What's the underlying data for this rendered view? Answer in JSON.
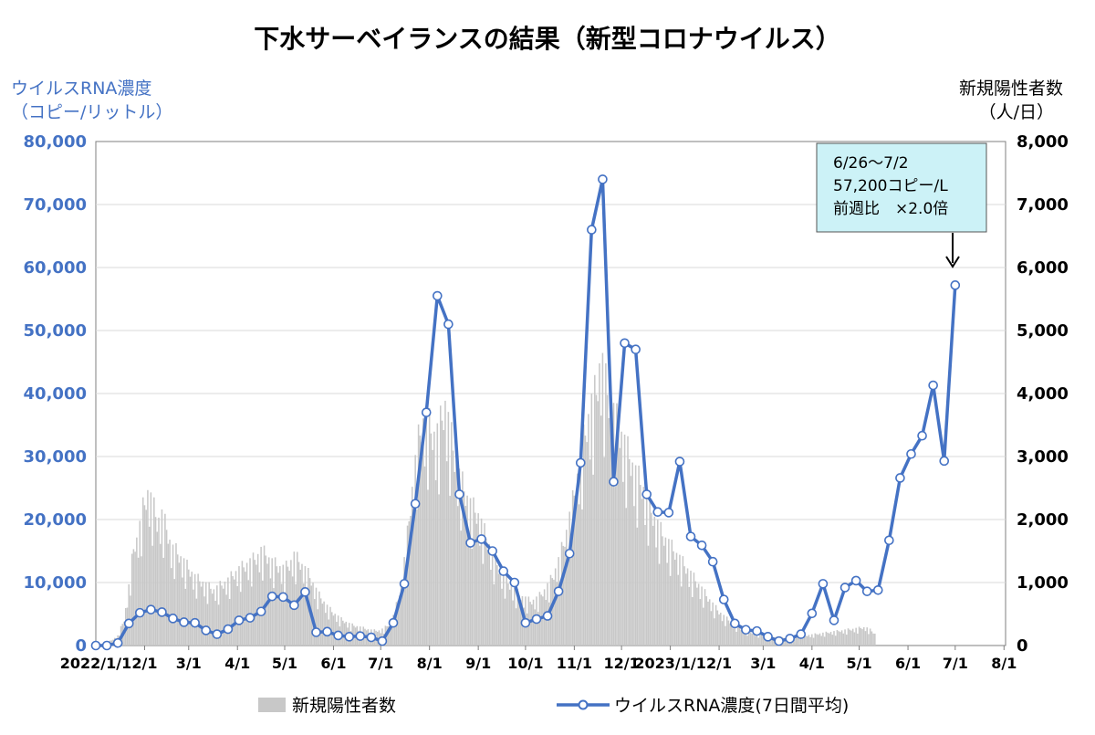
{
  "chart_data": {
    "type": "bar+line",
    "title": "下水サーベイランスの結果（新型コロナウイルス）",
    "left_axis": {
      "label_line1": "ウイルスRNA濃度",
      "label_line2": "（コピー/リットル）",
      "ylim": [
        0,
        80000
      ],
      "ticks": [
        "0",
        "10,000",
        "20,000",
        "30,000",
        "40,000",
        "50,000",
        "60,000",
        "70,000",
        "80,000"
      ],
      "tick_values": [
        0,
        10000,
        20000,
        30000,
        40000,
        50000,
        60000,
        70000,
        80000
      ]
    },
    "right_axis": {
      "label_line1": "新規陽性者数",
      "label_line2": "（人/日）",
      "ylim": [
        0,
        8000
      ],
      "ticks": [
        "0",
        "1,000",
        "2,000",
        "3,000",
        "4,000",
        "5,000",
        "6,000",
        "7,000",
        "8,000"
      ],
      "tick_values": [
        0,
        1000,
        2000,
        3000,
        4000,
        5000,
        6000,
        7000,
        8000
      ]
    },
    "x_axis": {
      "range_days": [
        0,
        578
      ],
      "tick_labels": [
        "2022/1/1",
        "2/1",
        "3/1",
        "4/1",
        "5/1",
        "6/1",
        "7/1",
        "8/1",
        "9/1",
        "10/1",
        "11/1",
        "12/1",
        "2023/1/1",
        "2/1",
        "3/1",
        "4/1",
        "5/1",
        "6/1",
        "7/1",
        "8/1"
      ],
      "tick_days": [
        0,
        31,
        59,
        90,
        120,
        151,
        181,
        212,
        243,
        273,
        304,
        334,
        365,
        396,
        424,
        455,
        485,
        516,
        546,
        577
      ]
    },
    "legend": {
      "bars_label": "新規陽性者数",
      "line_label": "ウイルスRNA濃度(7日間平均)",
      "placement": "bottom"
    },
    "annotation": {
      "line1": "6/26〜7/2",
      "line2": "57,200コピー/L",
      "line3": "前週比　×2.0倍"
    },
    "colors": {
      "line": "#4472c4",
      "bars": "#c8c8c8",
      "marker_fill": "#ffffff",
      "annotation_bg": "#ccf2f7"
    },
    "series": [
      {
        "name": "ウイルスRNA濃度(7日間平均)",
        "axis": "left",
        "points": [
          [
            0,
            0
          ],
          [
            7,
            0
          ],
          [
            14,
            400
          ],
          [
            21,
            3500
          ],
          [
            28,
            5200
          ],
          [
            35,
            5700
          ],
          [
            42,
            5300
          ],
          [
            49,
            4300
          ],
          [
            56,
            3700
          ],
          [
            63,
            3600
          ],
          [
            70,
            2400
          ],
          [
            77,
            1800
          ],
          [
            84,
            2600
          ],
          [
            91,
            4000
          ],
          [
            98,
            4400
          ],
          [
            105,
            5400
          ],
          [
            112,
            7800
          ],
          [
            119,
            7700
          ],
          [
            126,
            6400
          ],
          [
            133,
            8500
          ],
          [
            140,
            2100
          ],
          [
            147,
            2200
          ],
          [
            154,
            1600
          ],
          [
            161,
            1400
          ],
          [
            168,
            1500
          ],
          [
            175,
            1300
          ],
          [
            182,
            700
          ],
          [
            189,
            3600
          ],
          [
            196,
            9800
          ],
          [
            203,
            22500
          ],
          [
            210,
            37000
          ],
          [
            217,
            55500
          ],
          [
            224,
            51000
          ],
          [
            231,
            24000
          ],
          [
            238,
            16300
          ],
          [
            245,
            16900
          ],
          [
            252,
            15000
          ],
          [
            259,
            11800
          ],
          [
            266,
            10000
          ],
          [
            273,
            3600
          ],
          [
            280,
            4200
          ],
          [
            287,
            4700
          ],
          [
            294,
            8600
          ],
          [
            301,
            14600
          ],
          [
            308,
            29000
          ],
          [
            315,
            66000
          ],
          [
            322,
            74000
          ],
          [
            329,
            26000
          ],
          [
            336,
            48000
          ],
          [
            343,
            47000
          ],
          [
            350,
            24000
          ],
          [
            357,
            21200
          ],
          [
            364,
            21100
          ],
          [
            371,
            29200
          ],
          [
            378,
            17300
          ],
          [
            385,
            15900
          ],
          [
            392,
            13300
          ],
          [
            399,
            7300
          ],
          [
            406,
            3500
          ],
          [
            413,
            2500
          ],
          [
            420,
            2300
          ],
          [
            427,
            1400
          ],
          [
            434,
            700
          ],
          [
            441,
            1100
          ],
          [
            448,
            1800
          ],
          [
            455,
            5100
          ],
          [
            462,
            9800
          ],
          [
            469,
            4000
          ],
          [
            476,
            9200
          ],
          [
            483,
            10300
          ],
          [
            490,
            8600
          ],
          [
            497,
            8800
          ],
          [
            504,
            16700
          ],
          [
            511,
            26600
          ],
          [
            518,
            30400
          ],
          [
            525,
            33300
          ],
          [
            532,
            41300
          ],
          [
            539,
            29300
          ],
          [
            546,
            57200
          ]
        ]
      },
      {
        "name": "新規陽性者数",
        "axis": "right",
        "points": [
          [
            0,
            20
          ],
          [
            5,
            30
          ],
          [
            10,
            80
          ],
          [
            14,
            150
          ],
          [
            18,
            400
          ],
          [
            21,
            900
          ],
          [
            24,
            1500
          ],
          [
            27,
            1700
          ],
          [
            30,
            2100
          ],
          [
            33,
            2350
          ],
          [
            36,
            2200
          ],
          [
            39,
            1900
          ],
          [
            42,
            2000
          ],
          [
            45,
            1800
          ],
          [
            48,
            1500
          ],
          [
            51,
            1450
          ],
          [
            54,
            1350
          ],
          [
            57,
            1250
          ],
          [
            60,
            1150
          ],
          [
            63,
            1050
          ],
          [
            66,
            1000
          ],
          [
            69,
            950
          ],
          [
            72,
            900
          ],
          [
            75,
            850
          ],
          [
            78,
            900
          ],
          [
            81,
            950
          ],
          [
            84,
            1000
          ],
          [
            87,
            1080
          ],
          [
            90,
            1150
          ],
          [
            93,
            1200
          ],
          [
            96,
            1250
          ],
          [
            99,
            1300
          ],
          [
            102,
            1350
          ],
          [
            105,
            1450
          ],
          [
            108,
            1400
          ],
          [
            111,
            1300
          ],
          [
            114,
            1250
          ],
          [
            117,
            1200
          ],
          [
            120,
            1180
          ],
          [
            123,
            1250
          ],
          [
            126,
            1380
          ],
          [
            129,
            1300
          ],
          [
            132,
            1200
          ],
          [
            135,
            1100
          ],
          [
            138,
            950
          ],
          [
            141,
            800
          ],
          [
            144,
            700
          ],
          [
            147,
            600
          ],
          [
            150,
            520
          ],
          [
            153,
            460
          ],
          [
            156,
            400
          ],
          [
            159,
            360
          ],
          [
            162,
            320
          ],
          [
            165,
            300
          ],
          [
            168,
            280
          ],
          [
            171,
            260
          ],
          [
            174,
            240
          ],
          [
            177,
            230
          ],
          [
            180,
            230
          ],
          [
            183,
            260
          ],
          [
            186,
            320
          ],
          [
            189,
            450
          ],
          [
            192,
            700
          ],
          [
            195,
            1100
          ],
          [
            198,
            1700
          ],
          [
            201,
            2400
          ],
          [
            204,
            3000
          ],
          [
            207,
            3400
          ],
          [
            210,
            3500
          ],
          [
            213,
            3300
          ],
          [
            216,
            3200
          ],
          [
            219,
            3400
          ],
          [
            222,
            3700
          ],
          [
            225,
            3300
          ],
          [
            228,
            2900
          ],
          [
            231,
            2600
          ],
          [
            234,
            2400
          ],
          [
            237,
            2200
          ],
          [
            240,
            2100
          ],
          [
            243,
            2000
          ],
          [
            246,
            1800
          ],
          [
            249,
            1600
          ],
          [
            252,
            1400
          ],
          [
            255,
            1250
          ],
          [
            258,
            1100
          ],
          [
            261,
            1000
          ],
          [
            264,
            900
          ],
          [
            267,
            820
          ],
          [
            270,
            760
          ],
          [
            273,
            720
          ],
          [
            276,
            680
          ],
          [
            279,
            700
          ],
          [
            282,
            760
          ],
          [
            285,
            850
          ],
          [
            288,
            950
          ],
          [
            291,
            1100
          ],
          [
            294,
            1300
          ],
          [
            297,
            1550
          ],
          [
            300,
            1850
          ],
          [
            303,
            2200
          ],
          [
            306,
            2600
          ],
          [
            309,
            3000
          ],
          [
            312,
            3400
          ],
          [
            315,
            3700
          ],
          [
            318,
            3900
          ],
          [
            321,
            4450
          ],
          [
            324,
            4000
          ],
          [
            327,
            3700
          ],
          [
            330,
            3500
          ],
          [
            333,
            3300
          ],
          [
            336,
            3100
          ],
          [
            339,
            2900
          ],
          [
            342,
            2700
          ],
          [
            345,
            2550
          ],
          [
            348,
            2400
          ],
          [
            351,
            2200
          ],
          [
            354,
            2000
          ],
          [
            357,
            1850
          ],
          [
            360,
            1700
          ],
          [
            363,
            1600
          ],
          [
            366,
            1500
          ],
          [
            369,
            1400
          ],
          [
            372,
            1300
          ],
          [
            375,
            1200
          ],
          [
            378,
            1100
          ],
          [
            381,
            1000
          ],
          [
            384,
            900
          ],
          [
            387,
            800
          ],
          [
            390,
            700
          ],
          [
            393,
            600
          ],
          [
            396,
            520
          ],
          [
            399,
            450
          ],
          [
            402,
            390
          ],
          [
            405,
            330
          ],
          [
            408,
            290
          ],
          [
            411,
            250
          ],
          [
            414,
            220
          ],
          [
            417,
            200
          ],
          [
            420,
            180
          ],
          [
            423,
            160
          ],
          [
            426,
            150
          ],
          [
            429,
            140
          ],
          [
            432,
            130
          ],
          [
            435,
            120
          ],
          [
            438,
            120
          ],
          [
            441,
            120
          ],
          [
            444,
            130
          ],
          [
            447,
            140
          ],
          [
            450,
            150
          ],
          [
            453,
            160
          ],
          [
            456,
            170
          ],
          [
            459,
            180
          ],
          [
            462,
            190
          ],
          [
            465,
            200
          ],
          [
            468,
            210
          ],
          [
            471,
            220
          ],
          [
            474,
            230
          ],
          [
            477,
            240
          ],
          [
            480,
            250
          ],
          [
            483,
            260
          ],
          [
            486,
            270
          ],
          [
            489,
            280
          ],
          [
            492,
            240
          ],
          [
            495,
            180
          ]
        ]
      }
    ]
  }
}
